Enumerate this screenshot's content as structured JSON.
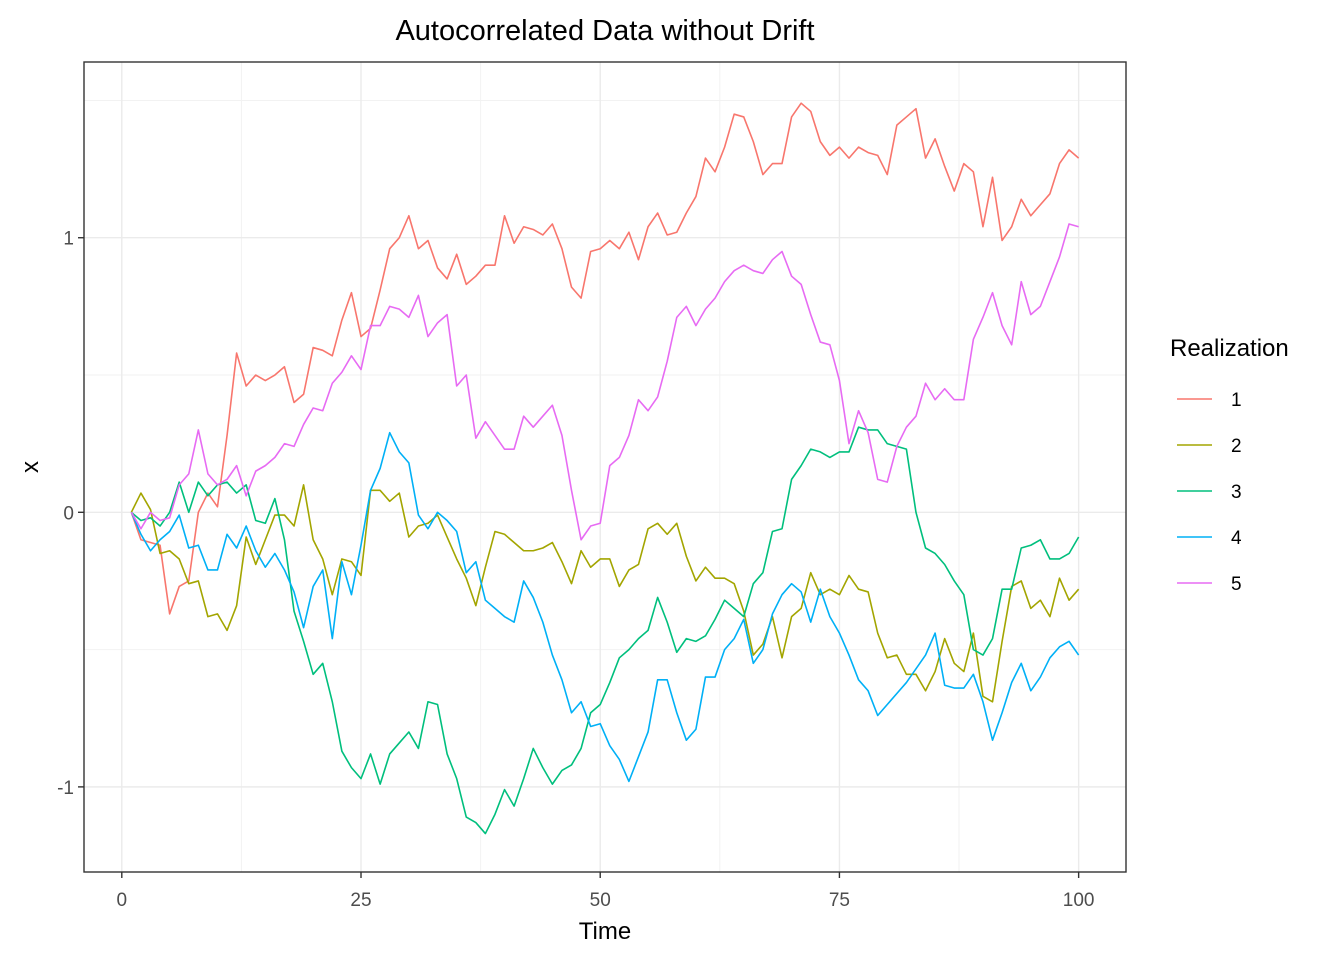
{
  "chart_data": {
    "type": "line",
    "title": "Autocorrelated Data without Drift",
    "xlabel": "Time",
    "ylabel": "x",
    "xlim": [
      -3.95,
      104.95
    ],
    "ylim": [
      -1.31,
      1.64
    ],
    "x_ticks": [
      0,
      25,
      50,
      75,
      100
    ],
    "x_tick_labels": [
      "0",
      "25",
      "50",
      "75",
      "100"
    ],
    "y_ticks": [
      -1,
      0,
      1
    ],
    "y_tick_labels": [
      "-1",
      "0",
      "1"
    ],
    "grid": true,
    "legend": {
      "title": "Realization",
      "position": "right"
    },
    "x": [
      1,
      2,
      3,
      4,
      5,
      6,
      7,
      8,
      9,
      10,
      11,
      12,
      13,
      14,
      15,
      16,
      17,
      18,
      19,
      20,
      21,
      22,
      23,
      24,
      25,
      26,
      27,
      28,
      29,
      30,
      31,
      32,
      33,
      34,
      35,
      36,
      37,
      38,
      39,
      40,
      41,
      42,
      43,
      44,
      45,
      46,
      47,
      48,
      49,
      50,
      51,
      52,
      53,
      54,
      55,
      56,
      57,
      58,
      59,
      60,
      61,
      62,
      63,
      64,
      65,
      66,
      67,
      68,
      69,
      70,
      71,
      72,
      73,
      74,
      75,
      76,
      77,
      78,
      79,
      80,
      81,
      82,
      83,
      84,
      85,
      86,
      87,
      88,
      89,
      90,
      91,
      92,
      93,
      94,
      95,
      96,
      97,
      98,
      99,
      100
    ],
    "series": [
      {
        "name": "1",
        "color": "#F8766D",
        "values": [
          0,
          -0.1,
          -0.11,
          -0.12,
          -0.37,
          -0.27,
          -0.25,
          0,
          0.07,
          0.02,
          0.28,
          0.58,
          0.46,
          0.5,
          0.48,
          0.5,
          0.53,
          0.4,
          0.43,
          0.6,
          0.59,
          0.57,
          0.7,
          0.8,
          0.64,
          0.67,
          0.81,
          0.96,
          1.0,
          1.08,
          0.96,
          0.99,
          0.89,
          0.85,
          0.94,
          0.83,
          0.86,
          0.9,
          0.9,
          1.08,
          0.98,
          1.04,
          1.03,
          1.01,
          1.05,
          0.96,
          0.82,
          0.78,
          0.95,
          0.96,
          0.99,
          0.96,
          1.02,
          0.92,
          1.04,
          1.09,
          1.01,
          1.02,
          1.09,
          1.15,
          1.29,
          1.24,
          1.33,
          1.45,
          1.44,
          1.35,
          1.23,
          1.27,
          1.27,
          1.44,
          1.49,
          1.46,
          1.35,
          1.3,
          1.33,
          1.29,
          1.33,
          1.31,
          1.3,
          1.23,
          1.41,
          1.44,
          1.47,
          1.29,
          1.36,
          1.26,
          1.17,
          1.27,
          1.24,
          1.04,
          1.22,
          0.99,
          1.04,
          1.14,
          1.08,
          1.12,
          1.16,
          1.27,
          1.32,
          1.29
        ]
      },
      {
        "name": "2",
        "color": "#A3A500",
        "values": [
          0,
          0.07,
          0.01,
          -0.15,
          -0.14,
          -0.17,
          -0.26,
          -0.25,
          -0.38,
          -0.37,
          -0.43,
          -0.34,
          -0.09,
          -0.19,
          -0.1,
          -0.01,
          -0.01,
          -0.05,
          0.1,
          -0.1,
          -0.17,
          -0.3,
          -0.17,
          -0.18,
          -0.23,
          0.08,
          0.08,
          0.04,
          0.07,
          -0.09,
          -0.05,
          -0.04,
          -0.01,
          -0.09,
          -0.17,
          -0.24,
          -0.34,
          -0.2,
          -0.07,
          -0.08,
          -0.11,
          -0.14,
          -0.14,
          -0.13,
          -0.11,
          -0.18,
          -0.26,
          -0.14,
          -0.2,
          -0.17,
          -0.17,
          -0.27,
          -0.21,
          -0.19,
          -0.06,
          -0.04,
          -0.08,
          -0.04,
          -0.16,
          -0.25,
          -0.2,
          -0.24,
          -0.24,
          -0.26,
          -0.36,
          -0.52,
          -0.48,
          -0.38,
          -0.53,
          -0.38,
          -0.35,
          -0.22,
          -0.3,
          -0.28,
          -0.3,
          -0.23,
          -0.28,
          -0.29,
          -0.44,
          -0.53,
          -0.52,
          -0.59,
          -0.59,
          -0.65,
          -0.58,
          -0.46,
          -0.55,
          -0.58,
          -0.44,
          -0.67,
          -0.69,
          -0.47,
          -0.27,
          -0.25,
          -0.35,
          -0.32,
          -0.38,
          -0.24,
          -0.32,
          -0.28
        ]
      },
      {
        "name": "3",
        "color": "#00BF7D",
        "values": [
          0,
          -0.03,
          -0.02,
          -0.05,
          0,
          0.11,
          0,
          0.11,
          0.06,
          0.1,
          0.11,
          0.07,
          0.1,
          -0.03,
          -0.04,
          0.05,
          -0.1,
          -0.36,
          -0.47,
          -0.59,
          -0.55,
          -0.69,
          -0.87,
          -0.93,
          -0.97,
          -0.88,
          -0.99,
          -0.88,
          -0.84,
          -0.8,
          -0.86,
          -0.69,
          -0.7,
          -0.88,
          -0.97,
          -1.11,
          -1.13,
          -1.17,
          -1.1,
          -1.01,
          -1.07,
          -0.97,
          -0.86,
          -0.93,
          -0.99,
          -0.94,
          -0.92,
          -0.86,
          -0.73,
          -0.7,
          -0.62,
          -0.53,
          -0.5,
          -0.46,
          -0.43,
          -0.31,
          -0.4,
          -0.51,
          -0.46,
          -0.47,
          -0.45,
          -0.39,
          -0.32,
          -0.35,
          -0.38,
          -0.26,
          -0.22,
          -0.07,
          -0.06,
          0.12,
          0.17,
          0.23,
          0.22,
          0.2,
          0.22,
          0.22,
          0.31,
          0.3,
          0.3,
          0.25,
          0.24,
          0.23,
          0,
          -0.13,
          -0.15,
          -0.19,
          -0.25,
          -0.3,
          -0.5,
          -0.52,
          -0.46,
          -0.28,
          -0.28,
          -0.13,
          -0.12,
          -0.1,
          -0.17,
          -0.17,
          -0.15,
          -0.09
        ]
      },
      {
        "name": "4",
        "color": "#00B0F6",
        "values": [
          0,
          -0.08,
          -0.14,
          -0.1,
          -0.07,
          -0.01,
          -0.13,
          -0.12,
          -0.21,
          -0.21,
          -0.08,
          -0.13,
          -0.05,
          -0.14,
          -0.2,
          -0.15,
          -0.21,
          -0.29,
          -0.42,
          -0.27,
          -0.21,
          -0.46,
          -0.18,
          -0.3,
          -0.12,
          0.08,
          0.16,
          0.29,
          0.22,
          0.18,
          -0.01,
          -0.06,
          0,
          -0.03,
          -0.07,
          -0.22,
          -0.18,
          -0.32,
          -0.35,
          -0.38,
          -0.4,
          -0.25,
          -0.31,
          -0.4,
          -0.52,
          -0.61,
          -0.73,
          -0.69,
          -0.78,
          -0.77,
          -0.85,
          -0.9,
          -0.98,
          -0.89,
          -0.8,
          -0.61,
          -0.61,
          -0.73,
          -0.83,
          -0.79,
          -0.6,
          -0.6,
          -0.5,
          -0.46,
          -0.39,
          -0.55,
          -0.5,
          -0.37,
          -0.3,
          -0.26,
          -0.29,
          -0.4,
          -0.28,
          -0.38,
          -0.44,
          -0.52,
          -0.61,
          -0.65,
          -0.74,
          -0.7,
          -0.66,
          -0.62,
          -0.57,
          -0.52,
          -0.44,
          -0.63,
          -0.64,
          -0.64,
          -0.59,
          -0.69,
          -0.83,
          -0.73,
          -0.62,
          -0.55,
          -0.65,
          -0.6,
          -0.53,
          -0.49,
          -0.47,
          -0.52
        ]
      },
      {
        "name": "5",
        "color": "#E76BF3",
        "values": [
          0,
          -0.06,
          0,
          -0.03,
          -0.02,
          0.1,
          0.14,
          0.3,
          0.14,
          0.1,
          0.12,
          0.17,
          0.06,
          0.15,
          0.17,
          0.2,
          0.25,
          0.24,
          0.32,
          0.38,
          0.37,
          0.47,
          0.51,
          0.57,
          0.52,
          0.68,
          0.68,
          0.75,
          0.74,
          0.71,
          0.79,
          0.64,
          0.69,
          0.72,
          0.46,
          0.5,
          0.27,
          0.33,
          0.28,
          0.23,
          0.23,
          0.35,
          0.31,
          0.35,
          0.39,
          0.28,
          0.08,
          -0.1,
          -0.05,
          -0.04,
          0.17,
          0.2,
          0.28,
          0.41,
          0.37,
          0.42,
          0.55,
          0.71,
          0.75,
          0.68,
          0.74,
          0.78,
          0.84,
          0.88,
          0.9,
          0.88,
          0.87,
          0.92,
          0.95,
          0.86,
          0.83,
          0.72,
          0.62,
          0.61,
          0.48,
          0.25,
          0.37,
          0.29,
          0.12,
          0.11,
          0.24,
          0.31,
          0.35,
          0.47,
          0.41,
          0.45,
          0.41,
          0.41,
          0.63,
          0.71,
          0.8,
          0.68,
          0.61,
          0.84,
          0.72,
          0.75,
          0.84,
          0.93,
          1.05,
          1.04
        ]
      }
    ]
  }
}
